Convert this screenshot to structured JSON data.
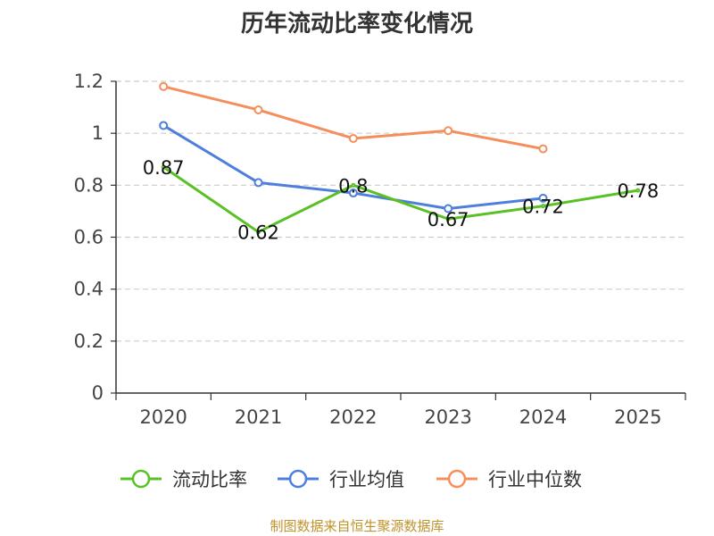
{
  "chart_data": {
    "type": "line",
    "title": "历年流动比率变化情况",
    "categories": [
      "2020",
      "2021",
      "2022",
      "2023",
      "2024",
      "2025"
    ],
    "ylim": [
      0,
      1.2
    ],
    "yticks": [
      "0",
      "0.2",
      "0.4",
      "0.6",
      "0.8",
      "1",
      "1.2"
    ],
    "grid": true,
    "legend_position": "bottom",
    "series": [
      {
        "name": "流动比率",
        "color": "#5ac125",
        "values": [
          0.87,
          0.62,
          0.8,
          0.67,
          0.72,
          0.78
        ],
        "labels": [
          "0.87",
          "0.62",
          "0.8",
          "0.67",
          "0.72",
          "0.78"
        ]
      },
      {
        "name": "行业均值",
        "color": "#4e7fdc",
        "values": [
          1.03,
          0.81,
          0.77,
          0.71,
          0.75,
          null
        ]
      },
      {
        "name": "行业中位数",
        "color": "#f48f5d",
        "values": [
          1.18,
          1.09,
          0.98,
          1.01,
          0.94,
          null
        ]
      }
    ]
  },
  "source": "制图数据来自恒生聚源数据库"
}
